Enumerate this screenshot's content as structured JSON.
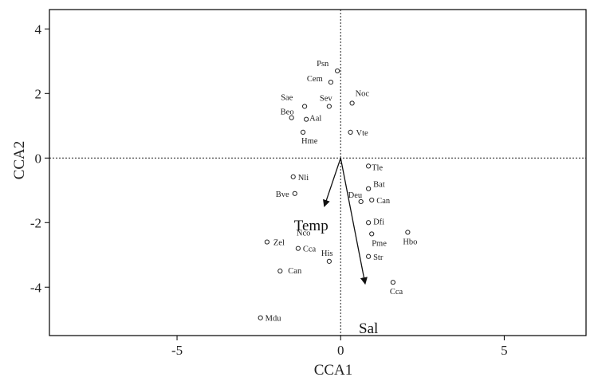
{
  "chart_data": {
    "type": "scatter",
    "xlabel": "CCA1",
    "ylabel": "CCA2",
    "xlim": [
      -8.9,
      7.5
    ],
    "ylim": [
      -5.5,
      4.6
    ],
    "xticks": [
      -5,
      0,
      5
    ],
    "yticks": [
      -4,
      -2,
      0,
      2,
      4
    ],
    "zero_lines": true,
    "points": [
      {
        "label": "Psn",
        "x": -0.1,
        "y": 2.7
      },
      {
        "label": "Cem",
        "x": -0.3,
        "y": 2.35
      },
      {
        "label": "Noc",
        "x": 0.35,
        "y": 1.7
      },
      {
        "label": "Sae",
        "x": -1.1,
        "y": 1.6
      },
      {
        "label": "Sev",
        "x": -0.35,
        "y": 1.6
      },
      {
        "label": "Beo",
        "x": -1.5,
        "y": 1.25
      },
      {
        "label": "Aal",
        "x": -1.05,
        "y": 1.2
      },
      {
        "label": "Hme",
        "x": -1.15,
        "y": 0.8
      },
      {
        "label": "Vte",
        "x": 0.3,
        "y": 0.8
      },
      {
        "label": "Tle",
        "x": 0.85,
        "y": -0.25
      },
      {
        "label": "Nli",
        "x": -1.45,
        "y": -0.58
      },
      {
        "label": "Bat",
        "x": 0.85,
        "y": -0.95
      },
      {
        "label": "Bve",
        "x": -1.4,
        "y": -1.1
      },
      {
        "label": "Deu",
        "x": 0.62,
        "y": -1.35
      },
      {
        "label": "Can",
        "x": 0.95,
        "y": -1.3
      },
      {
        "label": "Dfi",
        "x": 0.85,
        "y": -2.0
      },
      {
        "label": "Hbo",
        "x": 2.05,
        "y": -2.3
      },
      {
        "label": "Pme",
        "x": 0.95,
        "y": -2.35
      },
      {
        "label": "Zel",
        "x": -2.25,
        "y": -2.6
      },
      {
        "label": "Cca",
        "x": -1.3,
        "y": -2.8
      },
      {
        "label": "His",
        "x": -0.35,
        "y": -3.2
      },
      {
        "label": "Str",
        "x": 0.85,
        "y": -3.05
      },
      {
        "label": "Can",
        "x": -1.85,
        "y": -3.5
      },
      {
        "label": "Cca",
        "x": 1.6,
        "y": -3.85
      },
      {
        "label": "Mdu",
        "x": -2.45,
        "y": -4.95
      }
    ],
    "extra_labels": [
      {
        "label": "Nco",
        "x": -1.3,
        "y": -2.45
      }
    ],
    "vectors": [
      {
        "label": "Temp",
        "x": -0.5,
        "y": -1.5
      },
      {
        "label": "Sal",
        "x": 0.75,
        "y": -3.9
      }
    ]
  }
}
